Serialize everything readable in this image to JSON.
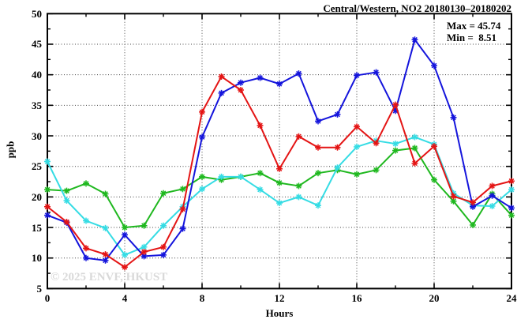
{
  "title": "Central/Western, NO2 20180130–20180202",
  "stats": {
    "max_label": "Max = 45.74",
    "min_label": "Min =  8.51"
  },
  "watermark": "© 2025 ENVF, HKUST",
  "chart_data": {
    "type": "line",
    "title": "Central/Western, NO2 20180130–20180202",
    "xlabel": "Hours",
    "ylabel": "ppb",
    "xlim": [
      0,
      24
    ],
    "ylim": [
      5,
      50
    ],
    "x_major_ticks": [
      0,
      4,
      8,
      12,
      16,
      20,
      24
    ],
    "x_minor_step": 2,
    "y_major_ticks": [
      5,
      10,
      15,
      20,
      25,
      30,
      35,
      40,
      45,
      50
    ],
    "y_minor_step": 2.5,
    "grid": "dotted-major",
    "legend": "none",
    "max": 45.74,
    "min": 8.51,
    "x": [
      0,
      1,
      2,
      3,
      4,
      5,
      6,
      7,
      8,
      9,
      10,
      11,
      12,
      13,
      14,
      15,
      16,
      17,
      18,
      19,
      20,
      21,
      22,
      23,
      24
    ],
    "series": [
      {
        "name": "series-green",
        "color": "#1fb81f",
        "values": [
          21.2,
          21.0,
          22.2,
          20.5,
          15.0,
          15.3,
          20.6,
          21.3,
          23.3,
          22.8,
          23.3,
          23.9,
          22.3,
          21.8,
          23.9,
          24.4,
          23.7,
          24.4,
          27.6,
          28.0,
          22.8,
          19.3,
          15.4,
          20.5,
          17.0
        ]
      },
      {
        "name": "series-cyan",
        "color": "#35dce4",
        "values": [
          25.8,
          19.4,
          16.1,
          14.9,
          10.5,
          11.8,
          15.3,
          18.4,
          21.3,
          23.3,
          23.3,
          21.2,
          19.0,
          20.0,
          18.6,
          24.8,
          28.2,
          29.2,
          28.7,
          29.8,
          28.6,
          20.6,
          18.6,
          18.5,
          21.2
        ]
      },
      {
        "name": "series-blue",
        "color": "#1414dc",
        "values": [
          17.0,
          15.8,
          10.0,
          9.6,
          13.8,
          10.3,
          10.5,
          14.8,
          29.8,
          37.0,
          38.7,
          39.5,
          38.5,
          40.2,
          32.4,
          33.5,
          39.9,
          40.4,
          34.1,
          45.74,
          41.5,
          33.0,
          18.4,
          20.2,
          18.2
        ]
      },
      {
        "name": "series-red",
        "color": "#e41414",
        "values": [
          18.4,
          15.9,
          11.6,
          10.6,
          8.51,
          11.0,
          11.8,
          18.0,
          33.9,
          39.7,
          37.5,
          31.7,
          24.6,
          29.9,
          28.1,
          28.1,
          31.5,
          28.8,
          35.1,
          25.5,
          28.3,
          20.1,
          19.1,
          21.8,
          22.6
        ]
      }
    ]
  }
}
